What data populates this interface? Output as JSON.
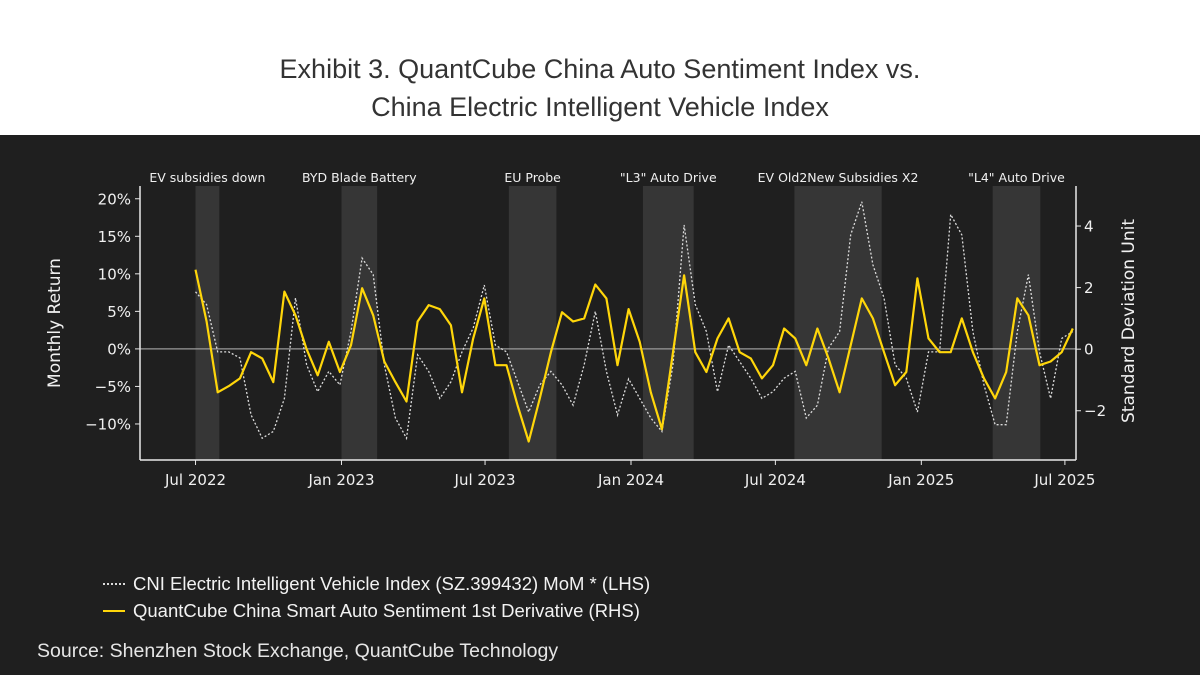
{
  "title": {
    "line1": "Exhibit 3. QuantCube China Auto Sentiment Index vs.",
    "line2": "China Electric Intelligent Vehicle Index"
  },
  "source": "Source: Shenzhen Stock Exchange, QuantCube Technology",
  "colors": {
    "background": "#1f1f1f",
    "shade": "#363636",
    "yellow": "#ffd60a",
    "white_series": "#dcdcdc",
    "axis": "#e8e8e8"
  },
  "chart_data": {
    "type": "line",
    "title": "",
    "xlabel": "",
    "ylabel_left": "Monthly Return",
    "ylabel_right": "Standard Deviation Unit",
    "ylim_left": [
      -14.8,
      21.7
    ],
    "ylim_right": [
      -3.6,
      5.3
    ],
    "xlim": [
      "2022-04-22",
      "2025-07-15"
    ],
    "grid": false,
    "zero_line": true,
    "legend_position": "bottom",
    "x_ticks": [
      {
        "date": "2022-07-01",
        "label": "Jul 2022"
      },
      {
        "date": "2023-01-01",
        "label": "Jan 2023"
      },
      {
        "date": "2023-07-01",
        "label": "Jul 2023"
      },
      {
        "date": "2024-01-01",
        "label": "Jan 2024"
      },
      {
        "date": "2024-07-01",
        "label": "Jul 2024"
      },
      {
        "date": "2025-01-01",
        "label": "Jan 2025"
      },
      {
        "date": "2025-07-01",
        "label": "Jul 2025"
      }
    ],
    "y_ticks_left": [
      {
        "value": 20,
        "label": "20%"
      },
      {
        "value": 15,
        "label": "15%"
      },
      {
        "value": 10,
        "label": "10%"
      },
      {
        "value": 5,
        "label": "5%"
      },
      {
        "value": 0,
        "label": "0%"
      },
      {
        "value": -5,
        "label": "−5%"
      },
      {
        "value": -10,
        "label": "−10%"
      }
    ],
    "y_ticks_right": [
      {
        "value": 4,
        "label": "4"
      },
      {
        "value": 2,
        "label": "2"
      },
      {
        "value": 0,
        "label": "0"
      },
      {
        "value": -2,
        "label": "−2"
      }
    ],
    "events": [
      {
        "label": "EV subsidies down",
        "start": "2022-07-01",
        "end": "2022-07-31"
      },
      {
        "label": "BYD Blade Battery",
        "start": "2023-01-01",
        "end": "2023-02-15"
      },
      {
        "label": "EU Probe",
        "start": "2023-07-31",
        "end": "2023-09-29"
      },
      {
        "label": "\"L3\" Auto Drive",
        "start": "2024-01-16",
        "end": "2024-03-20"
      },
      {
        "label": "EV Old2New Subsidies X2",
        "start": "2024-07-25",
        "end": "2024-11-12"
      },
      {
        "label": "\"L4\" Auto Drive",
        "start": "2025-04-01",
        "end": "2025-05-31"
      }
    ],
    "x": [
      "2022-07-01",
      "2022-07-15",
      "2022-07-29",
      "2022-08-12",
      "2022-08-26",
      "2022-09-09",
      "2022-09-23",
      "2022-10-07",
      "2022-10-21",
      "2022-11-04",
      "2022-11-18",
      "2022-12-02",
      "2022-12-16",
      "2022-12-30",
      "2023-01-13",
      "2023-01-27",
      "2023-02-10",
      "2023-02-24",
      "2023-03-10",
      "2023-03-24",
      "2023-04-07",
      "2023-04-21",
      "2023-05-05",
      "2023-05-19",
      "2023-06-02",
      "2023-06-16",
      "2023-06-30",
      "2023-07-14",
      "2023-07-28",
      "2023-08-11",
      "2023-08-25",
      "2023-09-08",
      "2023-09-22",
      "2023-10-06",
      "2023-10-20",
      "2023-11-03",
      "2023-11-17",
      "2023-12-01",
      "2023-12-15",
      "2023-12-29",
      "2024-01-12",
      "2024-01-26",
      "2024-02-09",
      "2024-02-23",
      "2024-03-08",
      "2024-03-22",
      "2024-04-05",
      "2024-04-19",
      "2024-05-03",
      "2024-05-17",
      "2024-05-31",
      "2024-06-14",
      "2024-06-28",
      "2024-07-12",
      "2024-07-26",
      "2024-08-09",
      "2024-08-23",
      "2024-09-06",
      "2024-09-20",
      "2024-10-04",
      "2024-10-18",
      "2024-11-01",
      "2024-11-15",
      "2024-11-29",
      "2024-12-13",
      "2024-12-27",
      "2025-01-10",
      "2025-01-24",
      "2025-02-07",
      "2025-02-21",
      "2025-03-07",
      "2025-03-21",
      "2025-04-04",
      "2025-04-18",
      "2025-05-02",
      "2025-05-16",
      "2025-05-30",
      "2025-06-13",
      "2025-06-27",
      "2025-07-11"
    ],
    "series": [
      {
        "name": "CNI Electric Intelligent Vehicle Index (SZ.399432) MoM * (LHS)",
        "axis": "left",
        "unit": "%",
        "style": "dotted",
        "values": [
          7.6,
          5.9,
          -0.4,
          -0.4,
          -1.2,
          -8.8,
          -11.9,
          -11,
          -6.6,
          6.8,
          -2.1,
          -5.7,
          -3,
          -4.8,
          2.3,
          12.1,
          9.9,
          -2.1,
          -9.2,
          -11.9,
          -0.8,
          -3,
          -6.6,
          -4.4,
          -0.4,
          2.8,
          8.5,
          0.5,
          -0.4,
          -4.4,
          -8.4,
          -4.8,
          -3,
          -4.8,
          -7.5,
          -2.1,
          5,
          -3,
          -8.8,
          -4,
          -6.6,
          -9.2,
          -11,
          -2.1,
          16.5,
          5.9,
          2.3,
          -5.7,
          0.5,
          -1.7,
          -3.9,
          -6.6,
          -5.7,
          -3.9,
          -3,
          -9.2,
          -7.5,
          0.1,
          2.3,
          15.2,
          19.6,
          11.2,
          6.8,
          -2.1,
          -3.9,
          -8.4,
          -0.4,
          -0.4,
          17.9,
          15.2,
          2.3,
          -4.8,
          -10.1,
          -10.1,
          2.3,
          9.9,
          -0.4,
          -6.6,
          1.4,
          2.3
        ]
      },
      {
        "name": "QuantCube China Smart Auto Sentiment 1st Derivative (RHS)",
        "axis": "right",
        "unit": "SD",
        "style": "solid",
        "values": [
          2.58,
          0.9,
          -1.4,
          -1.2,
          -0.95,
          -0.1,
          -0.3,
          -1.07,
          1.87,
          1.1,
          0,
          -0.85,
          0.24,
          -0.74,
          0.13,
          1.98,
          1.1,
          -0.4,
          -1.07,
          -1.7,
          0.9,
          1.43,
          1.3,
          0.78,
          -1.4,
          0.35,
          1.65,
          -0.52,
          -0.52,
          -1.83,
          -3.0,
          -1.6,
          -0.1,
          1.2,
          0.9,
          1.0,
          2.1,
          1.65,
          -0.52,
          1.3,
          0.24,
          -1.4,
          -2.6,
          -0.1,
          2.4,
          -0.1,
          -0.74,
          0.35,
          1.0,
          -0.1,
          -0.3,
          -0.95,
          -0.52,
          0.67,
          0.35,
          -0.52,
          0.67,
          -0.3,
          -1.4,
          0.13,
          1.65,
          1.0,
          -0.1,
          -1.17,
          -0.74,
          2.3,
          0.35,
          -0.1,
          -0.1,
          1.0,
          -0.1,
          -0.95,
          -1.6,
          -0.74,
          1.65,
          1.1,
          -0.52,
          -0.4,
          -0.1,
          0.67
        ]
      }
    ]
  }
}
